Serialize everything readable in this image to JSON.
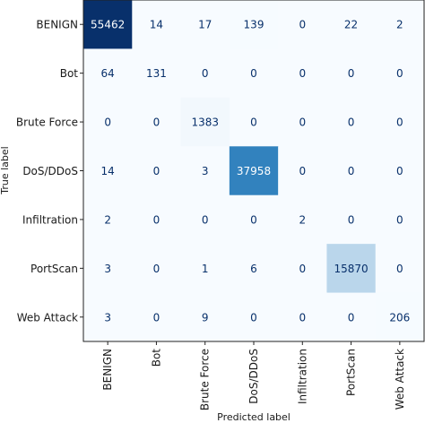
{
  "chart_data": {
    "type": "heatmap",
    "subtype": "confusion-matrix",
    "title": "",
    "xlabel": "Predicted label",
    "ylabel": "True label",
    "x_categories": [
      "BENIGN",
      "Bot",
      "Brute Force",
      "DoS/DDoS",
      "Infiltration",
      "PortScan",
      "Web Attack"
    ],
    "y_categories": [
      "BENIGN",
      "Bot",
      "Brute Force",
      "DoS/DDoS",
      "Infiltration",
      "PortScan",
      "Web Attack"
    ],
    "values": [
      [
        55462,
        14,
        17,
        139,
        0,
        22,
        2
      ],
      [
        64,
        131,
        0,
        0,
        0,
        0,
        0
      ],
      [
        0,
        0,
        1383,
        0,
        0,
        0,
        0
      ],
      [
        14,
        0,
        3,
        37958,
        0,
        0,
        0
      ],
      [
        2,
        0,
        0,
        0,
        2,
        0,
        0
      ],
      [
        3,
        0,
        1,
        6,
        0,
        15870,
        0
      ],
      [
        3,
        0,
        9,
        0,
        0,
        0,
        206
      ]
    ],
    "colormap": "Blues",
    "color_low": "#f7fbff",
    "color_high": "#08306b",
    "grid": false
  }
}
